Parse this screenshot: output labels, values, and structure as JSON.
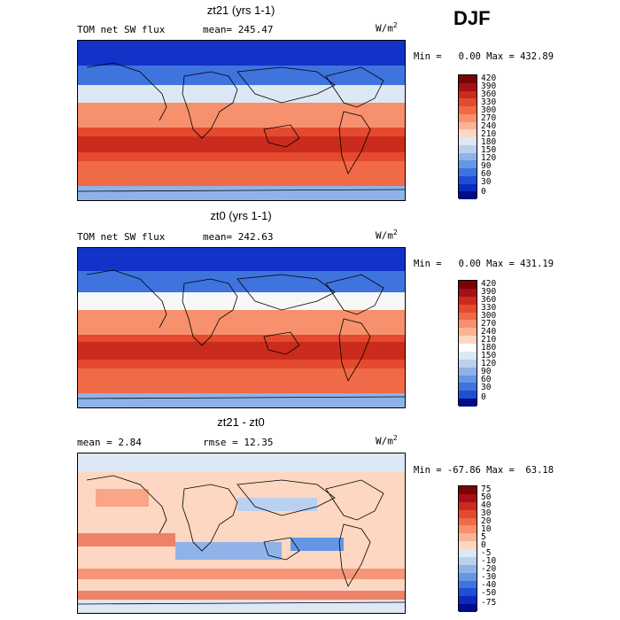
{
  "season": "DJF",
  "units_base": "W/m",
  "units_exp": "2",
  "panels": [
    {
      "title": "zt21 (yrs 1-1)",
      "left_label": "TOM net SW flux",
      "right_label": "mean= 245.47",
      "minmax": "Min =   0.00 Max = 432.89",
      "colorbar_ticks": [
        "420",
        "390",
        "360",
        "330",
        "300",
        "270",
        "240",
        "210",
        "180",
        "150",
        "120",
        "90",
        "60",
        "30",
        "0"
      ],
      "colors": [
        "#7a0403",
        "#a50f15",
        "#cb2b1c",
        "#e34a2e",
        "#f06a47",
        "#f7906d",
        "#fbb396",
        "#fdd7c1",
        "#dde8f5",
        "#b9d0ee",
        "#8fb3e9",
        "#6496e4",
        "#3f73dd",
        "#1d4ed4",
        "#0b2bc0",
        "#000c8a"
      ]
    },
    {
      "title": "zt0 (yrs 1-1)",
      "left_label": "TOM net SW flux",
      "right_label": "mean= 242.63",
      "minmax": "Min =   0.00 Max = 431.19",
      "colorbar_ticks": [
        "420",
        "390",
        "360",
        "330",
        "300",
        "270",
        "240",
        "210",
        "180",
        "150",
        "120",
        "90",
        "60",
        "30",
        "0"
      ],
      "colors": [
        "#7a0403",
        "#a50f15",
        "#cb2b1c",
        "#e34a2e",
        "#f06a47",
        "#f7906d",
        "#fbb396",
        "#fdd7c1",
        "#ffffff",
        "#dde8f5",
        "#b9d0ee",
        "#8fb3e9",
        "#6496e4",
        "#3f73dd",
        "#1d4ed4",
        "#000c8a"
      ]
    },
    {
      "title": "zt21 - zt0",
      "left_label": "mean =   2.84",
      "right_label": "rmse =  12.35",
      "minmax": "Min = -67.86 Max =  63.18",
      "colorbar_ticks": [
        "75",
        "50",
        "40",
        "30",
        "20",
        "10",
        "5",
        "0",
        "-5",
        "-10",
        "-20",
        "-30",
        "-40",
        "-50",
        "-75"
      ],
      "colors": [
        "#7a0403",
        "#a50f15",
        "#cb2b1c",
        "#e34a2e",
        "#f06a47",
        "#f7906d",
        "#fbb396",
        "#fdd7c1",
        "#dde8f5",
        "#b9d0ee",
        "#8fb3e9",
        "#6496e4",
        "#3f73dd",
        "#1d4ed4",
        "#0b2bc0",
        "#000c8a"
      ]
    }
  ]
}
